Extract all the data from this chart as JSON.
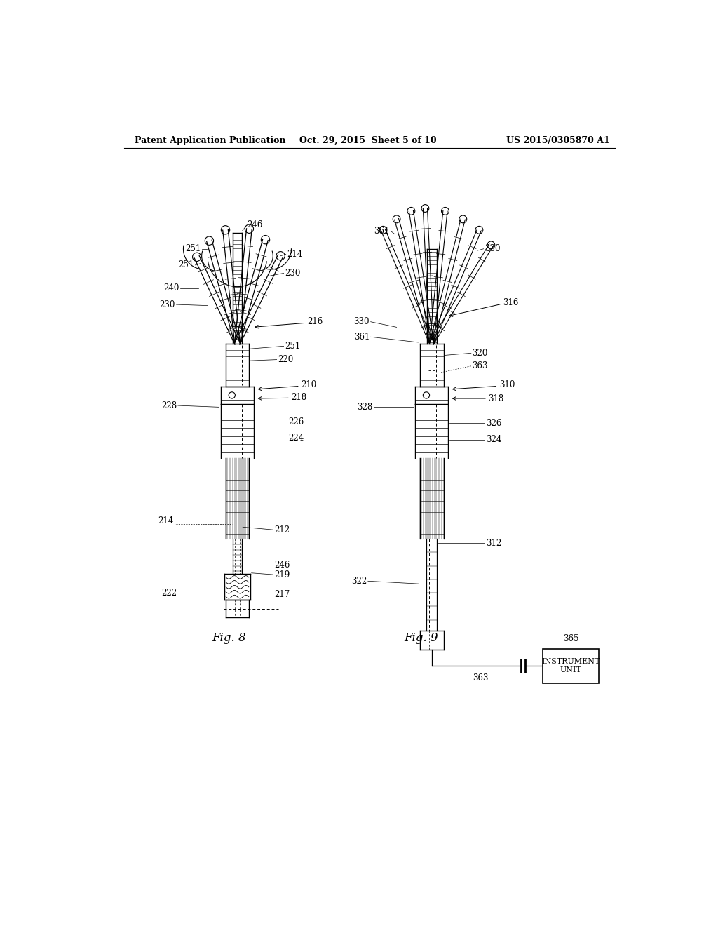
{
  "bg_color": "#ffffff",
  "line_color": "#000000",
  "header_left": "Patent Application Publication",
  "header_center": "Oct. 29, 2015  Sheet 5 of 10",
  "header_right": "US 2015/0305870 A1",
  "fig8_label": "Fig. 8",
  "fig9_label": "Fig. 9",
  "instrument_box_text": "INSTRUMENT\nUNIT"
}
